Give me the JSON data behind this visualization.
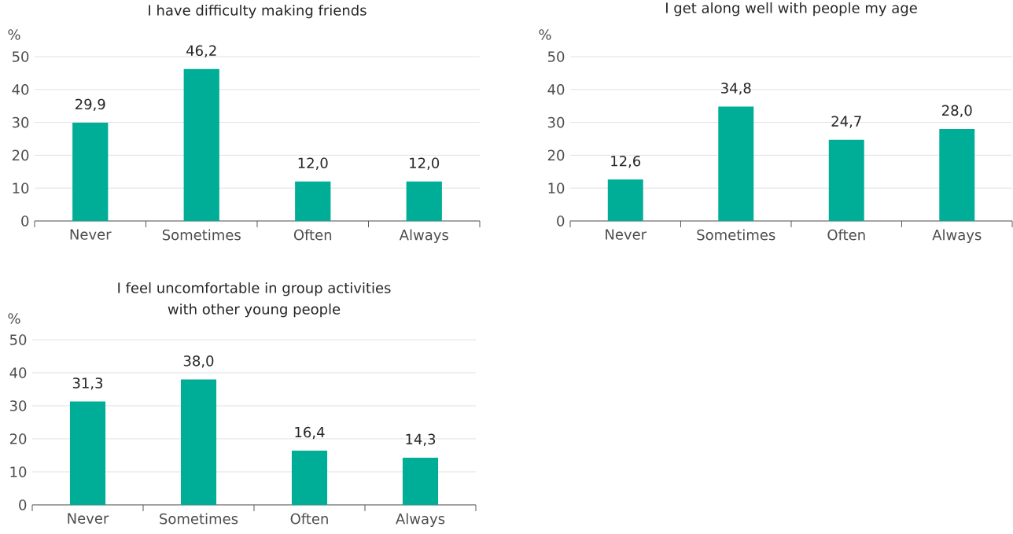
{
  "chart_data": [
    {
      "type": "bar",
      "title": "I have difficulty making friends",
      "ylabel": "%",
      "categories": [
        "Never",
        "Sometimes",
        "Often",
        "Always"
      ],
      "values": [
        29.9,
        46.2,
        12.0,
        12.0
      ],
      "value_labels": [
        "29,9",
        "46,2",
        "12,0",
        "12,0"
      ],
      "color": "#00ae97",
      "ylim": [
        0,
        50
      ],
      "yticks": [
        0,
        10,
        20,
        30,
        40,
        50
      ],
      "grid": "y"
    },
    {
      "type": "bar",
      "title": "I get along well with people my age",
      "ylabel": "%",
      "categories": [
        "Never",
        "Sometimes",
        "Often",
        "Always"
      ],
      "values": [
        12.6,
        34.8,
        24.7,
        28.0
      ],
      "value_labels": [
        "12,6",
        "34,8",
        "24,7",
        "28,0"
      ],
      "color": "#00ae97",
      "ylim": [
        0,
        50
      ],
      "yticks": [
        0,
        10,
        20,
        30,
        40,
        50
      ],
      "grid": "y"
    },
    {
      "type": "bar",
      "title": "I feel uncomfortable in group activities with other young people",
      "ylabel": "%",
      "categories": [
        "Never",
        "Sometimes",
        "Often",
        "Always"
      ],
      "values": [
        31.3,
        38.0,
        16.4,
        14.3
      ],
      "value_labels": [
        "31,3",
        "38,0",
        "16,4",
        "14,3"
      ],
      "color": "#00ae97",
      "ylim": [
        0,
        50
      ],
      "yticks": [
        0,
        10,
        20,
        30,
        40,
        50
      ],
      "grid": "y"
    }
  ]
}
